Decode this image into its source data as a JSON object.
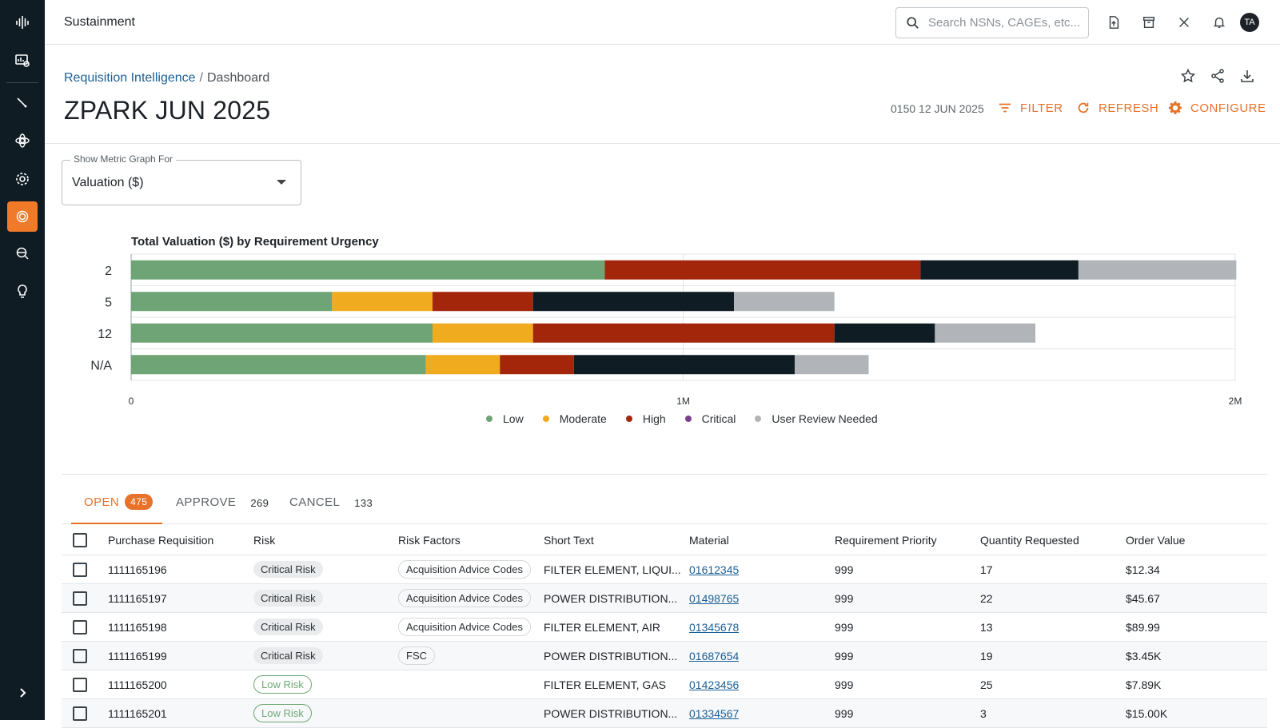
{
  "app": {
    "title": "Sustainment"
  },
  "search": {
    "placeholder": "Search NSNs, CAGEs, etc..."
  },
  "user": {
    "initials": "TA"
  },
  "breadcrumb": {
    "parent": "Requisition Intelligence",
    "separator": "/",
    "current": "Dashboard"
  },
  "page": {
    "title": "ZPARK JUN 2025",
    "timestamp": "0150 12 JUN 2025"
  },
  "actions": {
    "filter": "FILTER",
    "refresh": "REFRESH",
    "configure": "CONFIGURE"
  },
  "metric_select": {
    "label": "Show Metric Graph For",
    "value": "Valuation ($)"
  },
  "chart_data": {
    "type": "bar",
    "orientation": "horizontal",
    "stacked": true,
    "title": "Total Valuation ($) by Requirement Urgency",
    "categories": [
      "2",
      "5",
      "12",
      "N/A"
    ],
    "xlim": [
      0,
      2000000
    ],
    "xticks": [
      0,
      1000000,
      2000000
    ],
    "xtick_labels": [
      "0",
      "1M",
      "2M"
    ],
    "grid": true,
    "legend_position": "bottom",
    "series": [
      {
        "name": "Low",
        "color": "#6fa576",
        "values": [
          858000,
          364000,
          546000,
          534000
        ]
      },
      {
        "name": "Moderate",
        "color": "#f0ab1e",
        "values": [
          0,
          182000,
          182000,
          134000
        ]
      },
      {
        "name": "High",
        "color": "#a3260b",
        "values": [
          572000,
          182000,
          546000,
          134000
        ]
      },
      {
        "name": "Critical",
        "color": "#7b3f8f",
        "values": [
          0,
          0,
          0,
          0
        ]
      },
      {
        "name": "",
        "color": "#0f1c24",
        "values": [
          286000,
          364000,
          182000,
          400000
        ]
      },
      {
        "name": "User Review Needed",
        "color": "#b1b5b9",
        "values": [
          286000,
          182000,
          182000,
          134000
        ]
      }
    ]
  },
  "tabs": [
    {
      "label": "OPEN",
      "count": "475",
      "active": true
    },
    {
      "label": "APPROVE",
      "count": "269"
    },
    {
      "label": "CANCEL",
      "count": "133"
    }
  ],
  "table": {
    "columns": [
      "Purchase Requisition",
      "Risk",
      "Risk Factors",
      "Short Text",
      "Material",
      "Requirement Priority",
      "Quantity Requested",
      "Order Value"
    ],
    "rows": [
      {
        "pr": "1111165196",
        "risk": "Critical Risk",
        "risk_level": "critical",
        "factors": "Acquisition Advice Codes",
        "text": "FILTER ELEMENT, LIQUI...",
        "material": "01612345",
        "priority": "999",
        "qty": "17",
        "value": "$12.34"
      },
      {
        "pr": "1111165197",
        "risk": "Critical Risk",
        "risk_level": "critical",
        "factors": "Acquisition Advice Codes",
        "text": "POWER DISTRIBUTION...",
        "material": "01498765",
        "priority": "999",
        "qty": "22",
        "value": "$45.67"
      },
      {
        "pr": "1111165198",
        "risk": "Critical Risk",
        "risk_level": "critical",
        "factors": "Acquisition Advice Codes",
        "text": "FILTER ELEMENT, AIR",
        "material": "01345678",
        "priority": "999",
        "qty": "13",
        "value": "$89.99"
      },
      {
        "pr": "1111165199",
        "risk": "Critical Risk",
        "risk_level": "critical",
        "factors": "FSC",
        "text": "POWER DISTRIBUTION...",
        "material": "01687654",
        "priority": "999",
        "qty": "19",
        "value": "$3.45K"
      },
      {
        "pr": "1111165200",
        "risk": "Low Risk",
        "risk_level": "low",
        "factors": "",
        "text": "FILTER ELEMENT, GAS",
        "material": "01423456",
        "priority": "999",
        "qty": "25",
        "value": "$7.89K"
      },
      {
        "pr": "1111165201",
        "risk": "Low Risk",
        "risk_level": "low",
        "factors": "",
        "text": "POWER DISTRIBUTION...",
        "material": "01334567",
        "priority": "999",
        "qty": "3",
        "value": "$15.00K"
      }
    ]
  }
}
